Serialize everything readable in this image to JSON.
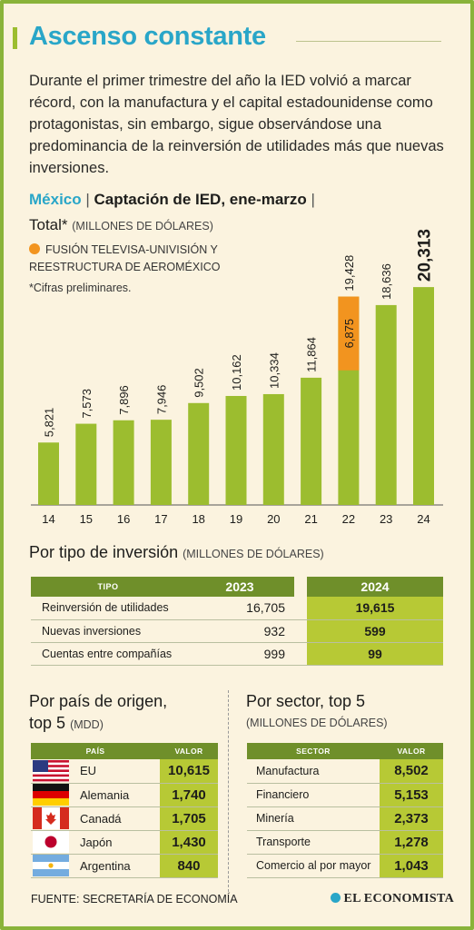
{
  "title": "Ascenso constante",
  "lead": "Durante el primer trimestre del año la IED volvió a marcar récord, con la manufactura y el capital estadounidense como protagonistas, sin embargo, sigue observándose una predominancia de la reinversión de utilidades más que nuevas inversiones.",
  "subtitle": {
    "country": "México",
    "sep": "|",
    "main": "Captación de IED, ene-marzo",
    "total": "Total*",
    "unit": "(MILLONES DE DÓLARES)"
  },
  "legend": {
    "line1": "FUSIÓN TELEVISA-UNIVISIÓN Y",
    "line2": "REESTRUCTURA DE AEROMÉXICO",
    "color": "#f2941f"
  },
  "note": "*Cifras preliminares.",
  "chart_data": {
    "type": "bar",
    "categories": [
      "14",
      "15",
      "16",
      "17",
      "18",
      "19",
      "20",
      "21",
      "22",
      "23",
      "24"
    ],
    "values": [
      5821,
      7573,
      7896,
      7946,
      9502,
      10162,
      10334,
      11864,
      19428,
      18636,
      20313
    ],
    "value_labels": [
      "5,821",
      "7,573",
      "7,896",
      "7,946",
      "9,502",
      "10,162",
      "10,334",
      "11,864",
      "19,428",
      "18,636",
      "20,313"
    ],
    "highlight": {
      "category": "22",
      "value": 6875,
      "label": "6,875",
      "color": "#f2941f"
    },
    "bar_color": "#9cbd2f",
    "ylim": [
      0,
      21000
    ],
    "emphasize_last": true
  },
  "tipo": {
    "heading": "Por tipo de inversión",
    "unit": "(MILLONES DE DÓLARES)",
    "headers": [
      "TIPO",
      "2023",
      "2024"
    ],
    "rows": [
      {
        "label": "Reinversión de utilidades",
        "v2023": "16,705",
        "v2024": "19,615"
      },
      {
        "label": "Nuevas inversiones",
        "v2023": "932",
        "v2024": "599"
      },
      {
        "label": "Cuentas entre compañías",
        "v2023": "999",
        "v2024": "99"
      }
    ]
  },
  "pais": {
    "heading1": "Por país de origen,",
    "heading2": "top 5",
    "unit": "(MDD)",
    "headers": [
      "PAÍS",
      "VALOR"
    ],
    "rows": [
      {
        "flag": "usa-flag-icon",
        "label": "EU",
        "value": "10,615"
      },
      {
        "flag": "germany-flag-icon",
        "label": "Alemania",
        "value": "1,740"
      },
      {
        "flag": "canada-flag-icon",
        "label": "Canadá",
        "value": "1,705"
      },
      {
        "flag": "japan-flag-icon",
        "label": "Japón",
        "value": "1,430"
      },
      {
        "flag": "argentina-flag-icon",
        "label": "Argentina",
        "value": "840"
      }
    ]
  },
  "sector": {
    "heading": "Por sector, top 5",
    "unit": "(MILLONES DE DÓLARES)",
    "headers": [
      "SECTOR",
      "VALOR"
    ],
    "rows": [
      {
        "label": "Manufactura",
        "value": "8,502"
      },
      {
        "label": "Financiero",
        "value": "5,153"
      },
      {
        "label": "Minería",
        "value": "2,373"
      },
      {
        "label": "Transporte",
        "value": "1,278"
      },
      {
        "label": "Comercio al por mayor",
        "value": "1,043"
      }
    ]
  },
  "source": "FUENTE: SECRETARÍA DE ECONOMÍA",
  "brand": "EL ECONOMISTA"
}
